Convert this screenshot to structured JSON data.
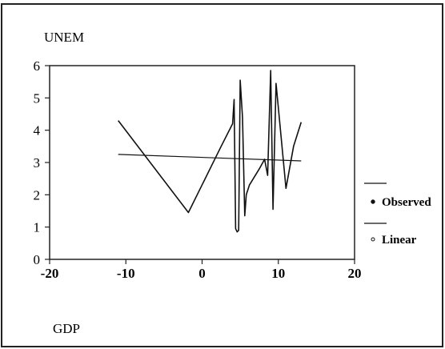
{
  "chart_data": {
    "type": "line",
    "ylabel": "UNEM",
    "xlabel": "GDP",
    "xlim": [
      -20,
      20
    ],
    "ylim": [
      0,
      6
    ],
    "x_ticks": [
      "-20",
      "-10",
      "0",
      "10",
      "20"
    ],
    "y_ticks": [
      "0",
      "1",
      "2",
      "3",
      "4",
      "5",
      "6"
    ],
    "legend_position": "right",
    "series": [
      {
        "name": "Observed",
        "color": "#111111",
        "x": [
          -11,
          -1.8,
          2.5,
          4,
          4.2,
          4.4,
          4.6,
          4.8,
          5,
          5.3,
          5.6,
          5.8,
          6.2,
          7.5,
          8.2,
          8.6,
          9,
          9.3,
          9.7,
          11,
          12,
          13
        ],
        "y": [
          4.3,
          1.45,
          3.5,
          4.2,
          4.95,
          0.95,
          0.85,
          0.9,
          5.55,
          4.4,
          1.35,
          2.0,
          2.3,
          2.8,
          3.1,
          2.6,
          5.85,
          1.55,
          5.45,
          2.2,
          3.5,
          4.25
        ]
      },
      {
        "name": "Linear",
        "color": "#111111",
        "x": [
          -11,
          13
        ],
        "y": [
          3.25,
          3.05
        ]
      }
    ]
  }
}
